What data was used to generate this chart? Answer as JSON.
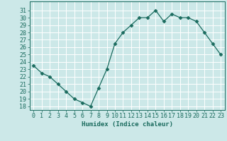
{
  "x": [
    0,
    1,
    2,
    3,
    4,
    5,
    6,
    7,
    8,
    9,
    10,
    11,
    12,
    13,
    14,
    15,
    16,
    17,
    18,
    19,
    20,
    21,
    22,
    23
  ],
  "y": [
    23.5,
    22.5,
    22.0,
    21.0,
    20.0,
    19.0,
    18.5,
    18.0,
    20.5,
    23.0,
    26.5,
    28.0,
    29.0,
    30.0,
    30.0,
    31.0,
    29.5,
    30.5,
    30.0,
    30.0,
    29.5,
    28.0,
    26.5,
    25.0
  ],
  "line_color": "#1a6b5e",
  "marker": "D",
  "marker_size": 2.5,
  "bg_color": "#cce8e8",
  "grid_color": "#b0d8d8",
  "xlabel": "Humidex (Indice chaleur)",
  "ylim": [
    17.5,
    32.2
  ],
  "xlim": [
    -0.5,
    23.5
  ],
  "yticks": [
    18,
    19,
    20,
    21,
    22,
    23,
    24,
    25,
    26,
    27,
    28,
    29,
    30,
    31
  ],
  "xticks": [
    0,
    1,
    2,
    3,
    4,
    5,
    6,
    7,
    8,
    9,
    10,
    11,
    12,
    13,
    14,
    15,
    16,
    17,
    18,
    19,
    20,
    21,
    22,
    23
  ],
  "label_fontsize": 6.5,
  "tick_fontsize": 6.0
}
